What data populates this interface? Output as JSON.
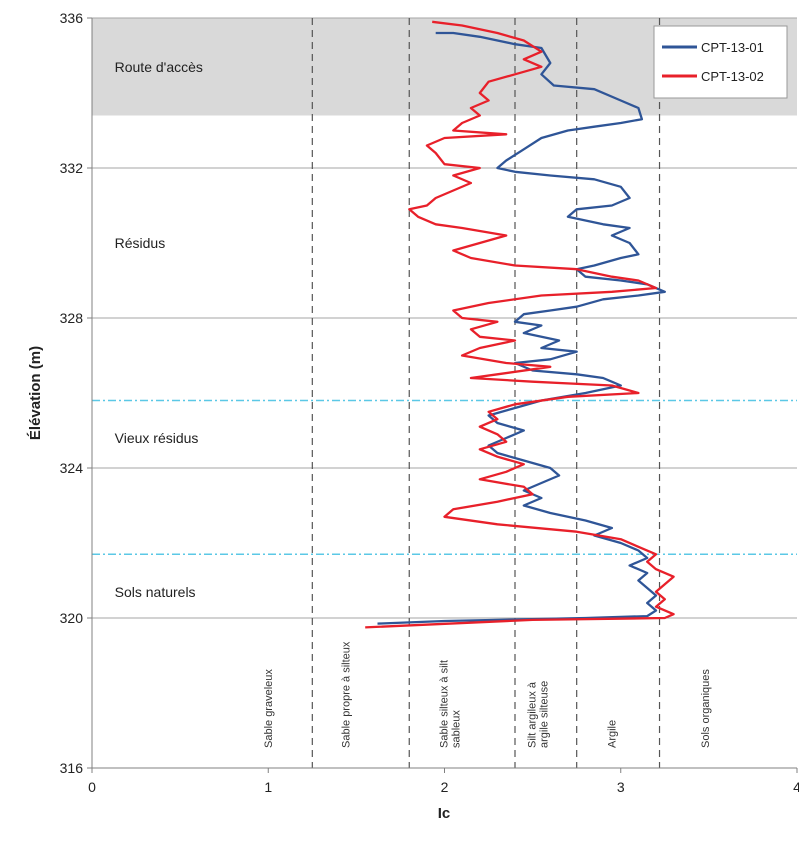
{
  "chart_data": {
    "type": "line",
    "xlabel": "Ic",
    "ylabel": "Élévation (m)",
    "xlim": [
      0,
      4
    ],
    "ylim": [
      316,
      336
    ],
    "x_ticks": [
      0,
      1,
      2,
      3,
      4
    ],
    "y_ticks": [
      316,
      320,
      324,
      328,
      332,
      336
    ],
    "grid": "horizontal gridlines at y ticks",
    "legend": {
      "placement": "top-right"
    },
    "series": [
      {
        "name": "CPT-13-01",
        "color": "#2F5597",
        "points": [
          [
            1.95,
            335.6
          ],
          [
            2.05,
            335.6
          ],
          [
            2.2,
            335.5
          ],
          [
            2.4,
            335.3
          ],
          [
            2.55,
            335.2
          ],
          [
            2.6,
            334.8
          ],
          [
            2.55,
            334.5
          ],
          [
            2.62,
            334.2
          ],
          [
            2.85,
            334.1
          ],
          [
            3.0,
            333.8
          ],
          [
            3.1,
            333.6
          ],
          [
            3.12,
            333.3
          ],
          [
            3.0,
            333.2
          ],
          [
            2.85,
            333.1
          ],
          [
            2.7,
            333.0
          ],
          [
            2.55,
            332.8
          ],
          [
            2.45,
            332.5
          ],
          [
            2.35,
            332.2
          ],
          [
            2.3,
            332.0
          ],
          [
            2.4,
            331.9
          ],
          [
            2.6,
            331.8
          ],
          [
            2.85,
            331.7
          ],
          [
            3.0,
            331.5
          ],
          [
            3.05,
            331.2
          ],
          [
            2.95,
            331.0
          ],
          [
            2.75,
            330.9
          ],
          [
            2.7,
            330.7
          ],
          [
            2.9,
            330.5
          ],
          [
            3.05,
            330.4
          ],
          [
            2.95,
            330.2
          ],
          [
            3.05,
            330.0
          ],
          [
            3.1,
            329.7
          ],
          [
            3.0,
            329.6
          ],
          [
            2.85,
            329.4
          ],
          [
            2.75,
            329.3
          ],
          [
            2.8,
            329.1
          ],
          [
            3.0,
            329.0
          ],
          [
            3.15,
            328.9
          ],
          [
            3.25,
            328.7
          ],
          [
            3.1,
            328.6
          ],
          [
            2.9,
            328.5
          ],
          [
            2.75,
            328.3
          ],
          [
            2.6,
            328.2
          ],
          [
            2.45,
            328.1
          ],
          [
            2.4,
            327.9
          ],
          [
            2.55,
            327.8
          ],
          [
            2.45,
            327.6
          ],
          [
            2.65,
            327.4
          ],
          [
            2.55,
            327.2
          ],
          [
            2.75,
            327.1
          ],
          [
            2.6,
            326.9
          ],
          [
            2.4,
            326.8
          ],
          [
            2.5,
            326.6
          ],
          [
            2.75,
            326.5
          ],
          [
            2.9,
            326.4
          ],
          [
            3.0,
            326.2
          ],
          [
            2.8,
            326.0
          ],
          [
            2.55,
            325.8
          ],
          [
            2.4,
            325.6
          ],
          [
            2.25,
            325.4
          ],
          [
            2.3,
            325.2
          ],
          [
            2.45,
            325.0
          ],
          [
            2.35,
            324.8
          ],
          [
            2.25,
            324.6
          ],
          [
            2.3,
            324.4
          ],
          [
            2.45,
            324.2
          ],
          [
            2.6,
            324.0
          ],
          [
            2.65,
            323.8
          ],
          [
            2.55,
            323.6
          ],
          [
            2.45,
            323.4
          ],
          [
            2.55,
            323.2
          ],
          [
            2.45,
            323.0
          ],
          [
            2.6,
            322.8
          ],
          [
            2.8,
            322.6
          ],
          [
            2.95,
            322.4
          ],
          [
            2.85,
            322.2
          ],
          [
            3.0,
            322.0
          ],
          [
            3.1,
            321.8
          ],
          [
            3.15,
            321.6
          ],
          [
            3.05,
            321.4
          ],
          [
            3.15,
            321.2
          ],
          [
            3.1,
            321.0
          ],
          [
            3.15,
            320.8
          ],
          [
            3.2,
            320.6
          ],
          [
            3.15,
            320.4
          ],
          [
            3.2,
            320.2
          ],
          [
            3.15,
            320.05
          ],
          [
            2.8,
            320.0
          ],
          [
            2.0,
            319.92
          ],
          [
            1.62,
            319.85
          ]
        ]
      },
      {
        "name": "CPT-13-02",
        "color": "#E8202A",
        "points": [
          [
            1.93,
            335.9
          ],
          [
            2.1,
            335.8
          ],
          [
            2.3,
            335.6
          ],
          [
            2.45,
            335.4
          ],
          [
            2.55,
            335.1
          ],
          [
            2.45,
            334.9
          ],
          [
            2.55,
            334.7
          ],
          [
            2.4,
            334.5
          ],
          [
            2.25,
            334.3
          ],
          [
            2.2,
            334.0
          ],
          [
            2.25,
            333.8
          ],
          [
            2.15,
            333.6
          ],
          [
            2.2,
            333.4
          ],
          [
            2.1,
            333.2
          ],
          [
            2.05,
            333.0
          ],
          [
            2.35,
            332.9
          ],
          [
            2.0,
            332.8
          ],
          [
            1.9,
            332.6
          ],
          [
            1.95,
            332.4
          ],
          [
            2.0,
            332.1
          ],
          [
            2.2,
            332.0
          ],
          [
            2.05,
            331.8
          ],
          [
            2.15,
            331.6
          ],
          [
            2.05,
            331.4
          ],
          [
            1.95,
            331.2
          ],
          [
            1.9,
            331.0
          ],
          [
            1.8,
            330.9
          ],
          [
            1.85,
            330.7
          ],
          [
            1.95,
            330.5
          ],
          [
            2.1,
            330.4
          ],
          [
            2.35,
            330.2
          ],
          [
            2.2,
            330.0
          ],
          [
            2.05,
            329.8
          ],
          [
            2.15,
            329.6
          ],
          [
            2.4,
            329.4
          ],
          [
            2.75,
            329.3
          ],
          [
            2.95,
            329.1
          ],
          [
            3.1,
            329.0
          ],
          [
            3.2,
            328.8
          ],
          [
            2.95,
            328.7
          ],
          [
            2.55,
            328.6
          ],
          [
            2.25,
            328.4
          ],
          [
            2.05,
            328.2
          ],
          [
            2.1,
            328.0
          ],
          [
            2.3,
            327.9
          ],
          [
            2.15,
            327.7
          ],
          [
            2.2,
            327.5
          ],
          [
            2.4,
            327.4
          ],
          [
            2.2,
            327.2
          ],
          [
            2.1,
            327.0
          ],
          [
            2.35,
            326.8
          ],
          [
            2.6,
            326.7
          ],
          [
            2.3,
            326.5
          ],
          [
            2.15,
            326.4
          ],
          [
            2.5,
            326.3
          ],
          [
            2.95,
            326.2
          ],
          [
            3.1,
            326.0
          ],
          [
            2.7,
            325.9
          ],
          [
            2.4,
            325.7
          ],
          [
            2.25,
            325.5
          ],
          [
            2.3,
            325.3
          ],
          [
            2.2,
            325.1
          ],
          [
            2.3,
            324.9
          ],
          [
            2.35,
            324.7
          ],
          [
            2.2,
            324.5
          ],
          [
            2.3,
            324.3
          ],
          [
            2.45,
            324.1
          ],
          [
            2.35,
            323.9
          ],
          [
            2.2,
            323.7
          ],
          [
            2.45,
            323.5
          ],
          [
            2.5,
            323.3
          ],
          [
            2.3,
            323.1
          ],
          [
            2.05,
            322.9
          ],
          [
            2.0,
            322.7
          ],
          [
            2.3,
            322.5
          ],
          [
            2.75,
            322.3
          ],
          [
            3.0,
            322.1
          ],
          [
            3.1,
            321.9
          ],
          [
            3.2,
            321.7
          ],
          [
            3.15,
            321.5
          ],
          [
            3.2,
            321.3
          ],
          [
            3.3,
            321.1
          ],
          [
            3.25,
            320.9
          ],
          [
            3.2,
            320.7
          ],
          [
            3.25,
            320.5
          ],
          [
            3.2,
            320.3
          ],
          [
            3.3,
            320.1
          ],
          [
            3.25,
            320.0
          ],
          [
            2.5,
            319.95
          ],
          [
            1.55,
            319.75
          ]
        ]
      }
    ],
    "reference_lines": [
      {
        "orientation": "vertical",
        "x": 1.25,
        "style": "dashed"
      },
      {
        "orientation": "vertical",
        "x": 1.8,
        "style": "dashed"
      },
      {
        "orientation": "vertical",
        "x": 2.4,
        "style": "dashed"
      },
      {
        "orientation": "vertical",
        "x": 2.75,
        "style": "dashed"
      },
      {
        "orientation": "vertical",
        "x": 3.22,
        "style": "dashed"
      },
      {
        "orientation": "horizontal",
        "y": 325.8,
        "style": "dash-dot",
        "color": "#5BC8E6"
      },
      {
        "orientation": "horizontal",
        "y": 321.7,
        "style": "dash-dot",
        "color": "#5BC8E6"
      }
    ],
    "shaded_band": {
      "y_range": [
        333.4,
        336
      ],
      "color": "#D9D9D9"
    },
    "layer_labels": [
      {
        "text": "Route d'accès",
        "x": 0.1,
        "y": 334.7
      },
      {
        "text": "Résidus",
        "x": 0.1,
        "y": 330.0
      },
      {
        "text": "Vieux résidus",
        "x": 0.1,
        "y": 324.8
      },
      {
        "text": "Sols naturels",
        "x": 0.1,
        "y": 320.7
      }
    ],
    "zone_labels": [
      {
        "text": "Sable graveleux",
        "x": 1.02
      },
      {
        "text": "Sable propre à silteux",
        "x": 1.46
      },
      {
        "text": "Sable silteux à silt\nsableux",
        "x": 2.05
      },
      {
        "text": "Silt argileux à\nargile silteuse",
        "x": 2.55
      },
      {
        "text": "Argile",
        "x": 2.97
      },
      {
        "text": "Sols organiques",
        "x": 3.5
      }
    ]
  }
}
